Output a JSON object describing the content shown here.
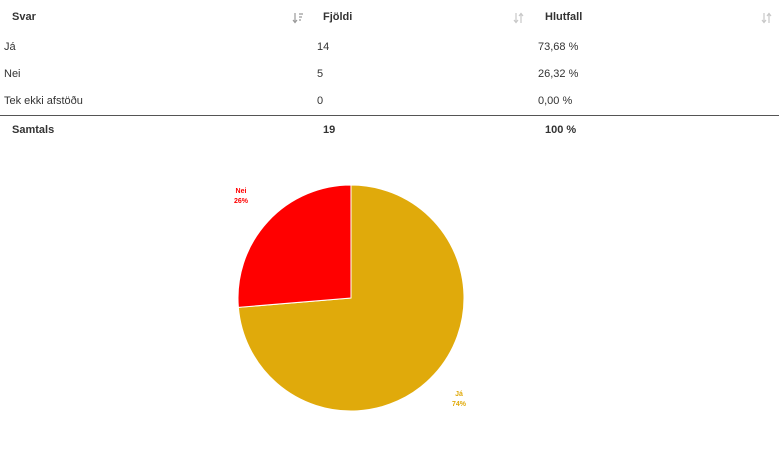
{
  "table": {
    "columns": [
      "Svar",
      "Fjöldi",
      "Hlutfall"
    ],
    "rows": [
      {
        "svar": "Já",
        "fjoldi": "14",
        "hlutfall": "73,68 %"
      },
      {
        "svar": "Nei",
        "fjoldi": "5",
        "hlutfall": "26,32 %"
      },
      {
        "svar": "Tek ekki afstöðu",
        "fjoldi": "0",
        "hlutfall": "0,00 %"
      }
    ],
    "total": {
      "svar": "Samtals",
      "fjoldi": "19",
      "hlutfall": "100 %"
    }
  },
  "chart_data": {
    "type": "pie",
    "slices": [
      {
        "name": "Já",
        "value": 73.68,
        "label": "74%",
        "color": "#e0aa0b"
      },
      {
        "name": "Nei",
        "value": 26.32,
        "label": "26%",
        "color": "#ff0000"
      }
    ]
  }
}
